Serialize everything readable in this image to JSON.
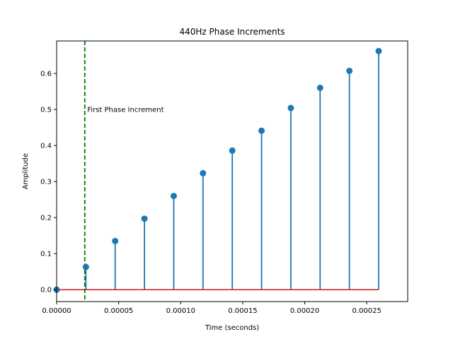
{
  "chart_data": {
    "type": "stem",
    "title": "440Hz Phase Increments",
    "xlabel": "Time (seconds)",
    "ylabel": "Amplitude",
    "xlim": [
      0,
      0.000283
    ],
    "ylim": [
      -0.033,
      0.69
    ],
    "x_ticks": [
      0,
      5e-05,
      0.0001,
      0.00015,
      0.0002,
      0.00025
    ],
    "x_tick_labels": [
      "0.00000",
      "0.00005",
      "0.00010",
      "0.00015",
      "0.00020",
      "0.00025"
    ],
    "y_ticks": [
      0,
      0.1,
      0.2,
      0.3,
      0.4,
      0.5,
      0.6
    ],
    "y_tick_labels": [
      "0.0",
      "0.1",
      "0.2",
      "0.3",
      "0.4",
      "0.5",
      "0.6"
    ],
    "series": [
      {
        "x": [
          0,
          2.36e-05,
          4.72e-05,
          7.08e-05,
          9.44e-05,
          0.000118,
          0.0001416,
          0.0001652,
          0.0001888,
          0.0002124,
          0.000236,
          0.0002596
        ],
        "y": [
          0,
          0.0627,
          0.1254,
          0.1881,
          0.2508,
          0.3135,
          0.3762,
          0.4389,
          0.5016,
          0.5643,
          0.627,
          0.6897
        ],
        "display_y": [
          0,
          0.063,
          0.135,
          0.197,
          0.26,
          0.323,
          0.386,
          0.441,
          0.504,
          0.56,
          0.607,
          0.662
        ],
        "marker_color": "#1f77b4",
        "stem_color": "#1f77b4",
        "baseline_color": "#d62728"
      }
    ],
    "vline": {
      "x": 2.27e-05,
      "color": "#008000",
      "style": "dashed"
    },
    "annotation": {
      "text": "First Phase Increment",
      "x": 2.47e-05,
      "y": 0.5
    },
    "grid": false
  }
}
